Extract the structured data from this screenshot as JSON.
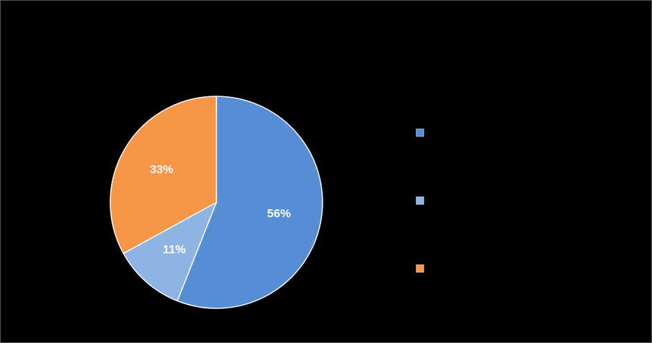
{
  "chart_data": {
    "type": "pie",
    "values": [
      56,
      11,
      33
    ],
    "value_labels": [
      "56%",
      "11%",
      "33%"
    ],
    "colors": [
      "#558ed5",
      "#8eb4e3",
      "#f79646"
    ],
    "legend": "right"
  }
}
